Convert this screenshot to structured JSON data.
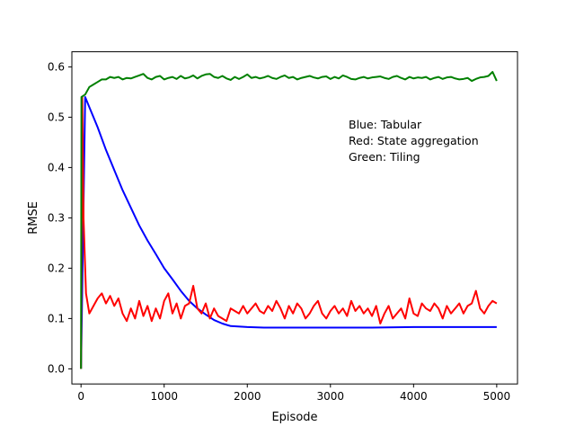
{
  "chart_data": {
    "type": "line",
    "title": "",
    "xlabel": "Episode",
    "ylabel": "RMSE",
    "xlim": [
      -110,
      5250
    ],
    "ylim": [
      -0.03,
      0.63
    ],
    "xticks": [
      0,
      1000,
      2000,
      3000,
      4000,
      5000
    ],
    "yticks": [
      0.0,
      0.1,
      0.2,
      0.3,
      0.4,
      0.5,
      0.6
    ],
    "grid": false,
    "legend_placement": "upper-right",
    "annotations": [
      "Blue: Tabular",
      "Red:  State aggregation",
      "Green: Tiling"
    ],
    "series": [
      {
        "color": "#0000ff",
        "x": [
          0,
          50,
          100,
          200,
          300,
          400,
          500,
          600,
          700,
          800,
          900,
          1000,
          1100,
          1200,
          1300,
          1400,
          1500,
          1600,
          1700,
          1800,
          2000,
          2200,
          2500,
          3000,
          3500,
          4000,
          4500,
          5000
        ],
        "y": [
          0.0,
          0.54,
          0.52,
          0.48,
          0.435,
          0.395,
          0.355,
          0.32,
          0.285,
          0.255,
          0.228,
          0.2,
          0.178,
          0.155,
          0.135,
          0.12,
          0.108,
          0.097,
          0.09,
          0.085,
          0.083,
          0.082,
          0.082,
          0.082,
          0.082,
          0.083,
          0.083,
          0.083
        ]
      },
      {
        "color": "#ff0000",
        "x": [
          0,
          15,
          30,
          60,
          100,
          150,
          200,
          250,
          300,
          350,
          400,
          450,
          500,
          550,
          600,
          650,
          700,
          750,
          800,
          850,
          900,
          950,
          1000,
          1050,
          1100,
          1150,
          1200,
          1250,
          1300,
          1350,
          1400,
          1450,
          1500,
          1550,
          1600,
          1650,
          1700,
          1750,
          1800,
          1850,
          1900,
          1950,
          2000,
          2050,
          2100,
          2150,
          2200,
          2250,
          2300,
          2350,
          2400,
          2450,
          2500,
          2550,
          2600,
          2650,
          2700,
          2750,
          2800,
          2850,
          2900,
          2950,
          3000,
          3050,
          3100,
          3150,
          3200,
          3250,
          3300,
          3350,
          3400,
          3450,
          3500,
          3550,
          3600,
          3650,
          3700,
          3750,
          3800,
          3850,
          3900,
          3950,
          4000,
          4050,
          4100,
          4150,
          4200,
          4250,
          4300,
          4350,
          4400,
          4450,
          4500,
          4550,
          4600,
          4650,
          4700,
          4750,
          4800,
          4850,
          4900,
          4950,
          5000
        ],
        "y": [
          0.0,
          0.54,
          0.3,
          0.15,
          0.11,
          0.125,
          0.14,
          0.15,
          0.13,
          0.145,
          0.125,
          0.14,
          0.11,
          0.095,
          0.12,
          0.1,
          0.135,
          0.105,
          0.125,
          0.095,
          0.12,
          0.1,
          0.135,
          0.15,
          0.11,
          0.13,
          0.1,
          0.125,
          0.13,
          0.165,
          0.12,
          0.11,
          0.13,
          0.1,
          0.12,
          0.105,
          0.1,
          0.095,
          0.12,
          0.115,
          0.11,
          0.125,
          0.11,
          0.12,
          0.13,
          0.115,
          0.11,
          0.125,
          0.115,
          0.135,
          0.12,
          0.1,
          0.125,
          0.11,
          0.13,
          0.12,
          0.1,
          0.11,
          0.125,
          0.135,
          0.11,
          0.1,
          0.115,
          0.125,
          0.11,
          0.12,
          0.105,
          0.135,
          0.115,
          0.125,
          0.11,
          0.12,
          0.105,
          0.125,
          0.09,
          0.11,
          0.125,
          0.1,
          0.11,
          0.12,
          0.1,
          0.14,
          0.11,
          0.105,
          0.13,
          0.12,
          0.115,
          0.13,
          0.12,
          0.1,
          0.125,
          0.11,
          0.12,
          0.13,
          0.11,
          0.125,
          0.13,
          0.155,
          0.12,
          0.11,
          0.125,
          0.135,
          0.13
        ]
      },
      {
        "color": "#008000",
        "x": [
          0,
          5,
          50,
          100,
          150,
          200,
          250,
          300,
          350,
          400,
          450,
          500,
          550,
          600,
          650,
          700,
          750,
          800,
          850,
          900,
          950,
          1000,
          1050,
          1100,
          1150,
          1200,
          1250,
          1300,
          1350,
          1400,
          1450,
          1500,
          1550,
          1600,
          1650,
          1700,
          1750,
          1800,
          1850,
          1900,
          1950,
          2000,
          2050,
          2100,
          2150,
          2200,
          2250,
          2300,
          2350,
          2400,
          2450,
          2500,
          2550,
          2600,
          2650,
          2700,
          2750,
          2800,
          2850,
          2900,
          2950,
          3000,
          3050,
          3100,
          3150,
          3200,
          3250,
          3300,
          3350,
          3400,
          3450,
          3500,
          3550,
          3600,
          3650,
          3700,
          3750,
          3800,
          3850,
          3900,
          3950,
          4000,
          4050,
          4100,
          4150,
          4200,
          4250,
          4300,
          4350,
          4400,
          4450,
          4500,
          4550,
          4600,
          4650,
          4700,
          4750,
          4800,
          4850,
          4900,
          4950,
          5000
        ],
        "y": [
          0.0,
          0.54,
          0.545,
          0.56,
          0.565,
          0.57,
          0.575,
          0.575,
          0.58,
          0.578,
          0.58,
          0.575,
          0.578,
          0.577,
          0.58,
          0.583,
          0.586,
          0.578,
          0.575,
          0.58,
          0.582,
          0.575,
          0.578,
          0.58,
          0.576,
          0.582,
          0.577,
          0.579,
          0.583,
          0.577,
          0.582,
          0.585,
          0.586,
          0.58,
          0.578,
          0.582,
          0.577,
          0.574,
          0.58,
          0.576,
          0.58,
          0.585,
          0.578,
          0.58,
          0.577,
          0.579,
          0.582,
          0.578,
          0.576,
          0.58,
          0.583,
          0.578,
          0.58,
          0.575,
          0.578,
          0.58,
          0.582,
          0.579,
          0.577,
          0.58,
          0.581,
          0.576,
          0.58,
          0.577,
          0.583,
          0.58,
          0.576,
          0.575,
          0.578,
          0.58,
          0.577,
          0.579,
          0.58,
          0.581,
          0.578,
          0.576,
          0.58,
          0.582,
          0.578,
          0.575,
          0.58,
          0.577,
          0.579,
          0.578,
          0.58,
          0.575,
          0.578,
          0.58,
          0.576,
          0.579,
          0.58,
          0.577,
          0.575,
          0.576,
          0.578,
          0.572,
          0.576,
          0.579,
          0.58,
          0.582,
          0.59,
          0.572
        ]
      }
    ]
  }
}
